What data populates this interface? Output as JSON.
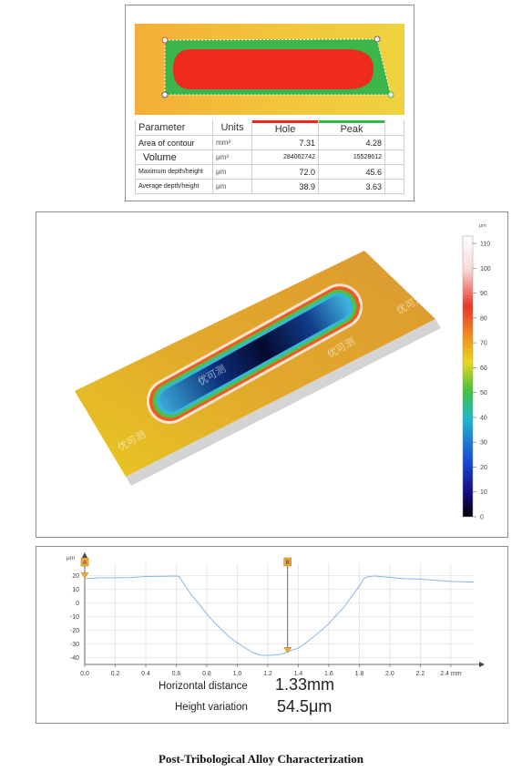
{
  "top_panel": {
    "table": {
      "headers": {
        "parameter": "Parameter",
        "units": "Units",
        "hole": "Hole",
        "peak": "Peak"
      },
      "rows": [
        {
          "parameter": "Area of contour",
          "unit": "mm²",
          "hole": "7.31",
          "peak": "4.28"
        },
        {
          "parameter": "Volume",
          "unit": "μm³",
          "hole": "284062742",
          "peak": "15528612"
        },
        {
          "parameter": "Maximum depth/height",
          "unit": "μm",
          "hole": "72.0",
          "peak": "45.6"
        },
        {
          "parameter": "Average depth/height",
          "unit": "μm",
          "hole": "38.9",
          "peak": "3.63"
        }
      ]
    },
    "colors": {
      "hole": "#e8291c",
      "peak": "#32b845",
      "background": "#f0c13a"
    }
  },
  "surface_3d": {
    "watermark": "优可测",
    "colorbar": {
      "unit": "μm",
      "ticks": [
        "110",
        "100",
        "90",
        "80",
        "70",
        "60",
        "50",
        "40",
        "30",
        "20",
        "10",
        "0"
      ]
    }
  },
  "chart_data": {
    "type": "line",
    "x_unit": "mm",
    "y_unit": "μm",
    "xlim": [
      0,
      2.55
    ],
    "ylim": [
      -45,
      25
    ],
    "x_ticks": [
      "0.0",
      "0.2",
      "0.4",
      "0.6",
      "0.8",
      "1.0",
      "1.2",
      "1.4",
      "1.6",
      "1.8",
      "2.0",
      "2.2",
      "2.4 mm"
    ],
    "x_tick_values": [
      0,
      0.2,
      0.4,
      0.6,
      0.8,
      1.0,
      1.2,
      1.4,
      1.6,
      1.8,
      2.0,
      2.2,
      2.4
    ],
    "y_ticks": [
      "20",
      "10",
      "0",
      "-10",
      "-20",
      "-30",
      "-40"
    ],
    "y_tick_values": [
      20,
      10,
      0,
      -10,
      -20,
      -30,
      -40
    ],
    "grid": true,
    "series": [
      {
        "color": "#7ab0e6",
        "x": [
          0.0,
          0.1,
          0.2,
          0.3,
          0.4,
          0.5,
          0.6,
          0.62,
          0.65,
          0.7,
          0.75,
          0.8,
          0.85,
          0.9,
          0.95,
          1.0,
          1.05,
          1.1,
          1.15,
          1.2,
          1.25,
          1.3,
          1.35,
          1.4,
          1.45,
          1.5,
          1.55,
          1.6,
          1.65,
          1.7,
          1.75,
          1.8,
          1.83,
          1.86,
          1.9,
          2.0,
          2.1,
          2.2,
          2.3,
          2.4,
          2.55
        ],
        "y": [
          18,
          18.2,
          18.5,
          18.8,
          19.2,
          19.6,
          20,
          19,
          14,
          6,
          -1,
          -8,
          -14,
          -20,
          -25,
          -29,
          -33,
          -36,
          -38,
          -38.5,
          -38,
          -37,
          -35,
          -33,
          -29,
          -25,
          -20,
          -15,
          -9,
          -3,
          5,
          12,
          18,
          19.5,
          19.5,
          18.8,
          18,
          17.3,
          16.6,
          16,
          15
        ]
      }
    ],
    "cursors": [
      {
        "id": "A",
        "x": 0.0,
        "y": 18
      },
      {
        "id": "B",
        "x": 1.33,
        "y": -36.5
      }
    ]
  },
  "profile": {
    "y_unit_label": "μm",
    "marker_a": "A",
    "marker_b": "B",
    "horizontal_distance_label": "Horizontal distance",
    "horizontal_distance_value": "1.33mm",
    "height_variation_label": "Height variation",
    "height_variation_value": "54.5μm"
  },
  "caption": "Post-Tribological Alloy Characterization"
}
